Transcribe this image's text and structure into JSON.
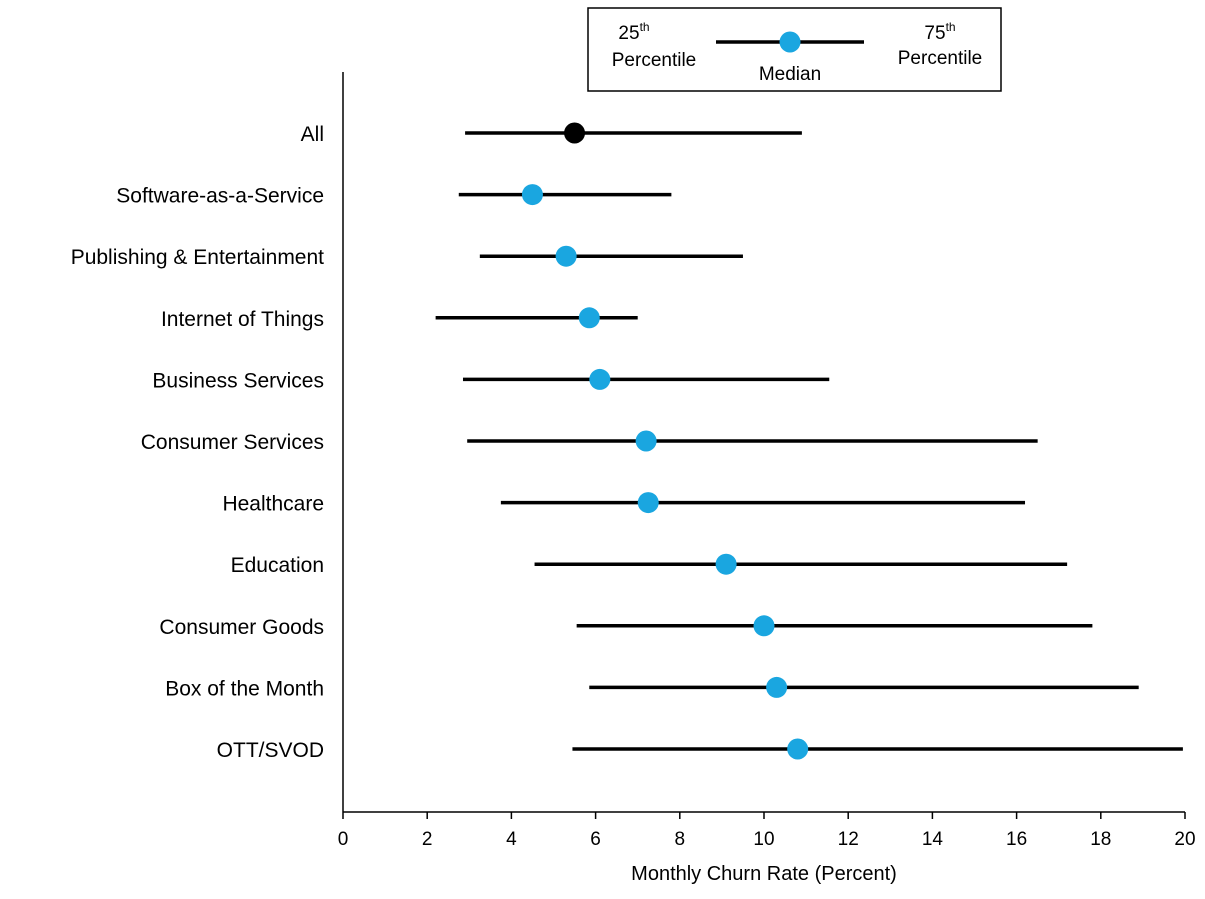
{
  "chart_data": {
    "type": "range-dot",
    "xlabel": "Monthly Churn Rate (Percent)",
    "xlim": [
      0,
      20
    ],
    "xticks": [
      "0",
      "2",
      "4",
      "6",
      "8",
      "10",
      "12",
      "14",
      "16",
      "18",
      "20"
    ],
    "grid": false,
    "legend": {
      "placement": "top",
      "left_base": "25",
      "left_sup": "th",
      "left_word": "Percentile",
      "center_word": "Median",
      "right_base": "75",
      "right_sup": "th",
      "right_word": "Percentile"
    },
    "categories": [
      "All",
      "Software-as-a-Service",
      "Publishing & Entertainment",
      "Internet of Things",
      "Business Services",
      "Consumer Services",
      "Healthcare",
      "Education",
      "Consumer Goods",
      "Box of the Month",
      "OTT/SVOD"
    ],
    "p25": [
      2.9,
      2.75,
      3.25,
      2.2,
      2.85,
      2.95,
      3.75,
      4.55,
      5.55,
      5.85,
      5.45
    ],
    "median": [
      5.5,
      4.5,
      5.3,
      5.85,
      6.1,
      7.2,
      7.25,
      9.1,
      10.0,
      10.3,
      10.8
    ],
    "p75": [
      10.9,
      7.8,
      9.5,
      7.0,
      11.55,
      16.5,
      16.2,
      17.2,
      17.8,
      18.9,
      19.95
    ]
  },
  "colors": {
    "highlight_dot": "#000000",
    "dot": "#1aa6e0",
    "line": "#000000"
  }
}
